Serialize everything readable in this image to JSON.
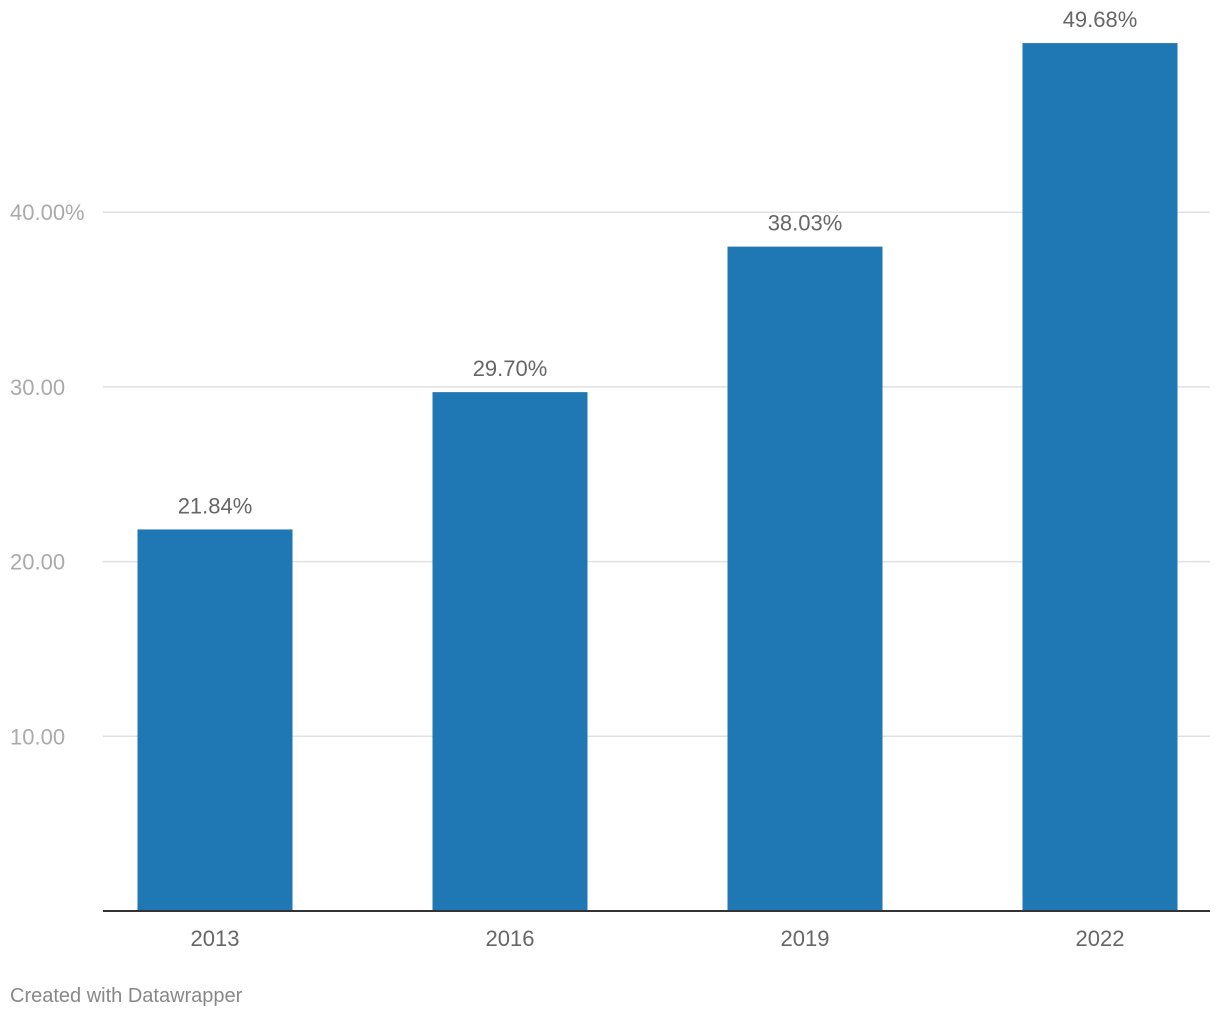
{
  "chart_data": {
    "type": "bar",
    "categories": [
      "2013",
      "2016",
      "2019",
      "2022"
    ],
    "values": [
      21.84,
      29.7,
      38.03,
      49.68
    ],
    "data_labels": [
      "21.84%",
      "29.70%",
      "38.03%",
      "49.68%"
    ],
    "y_ticks": [
      10,
      20,
      30,
      40
    ],
    "y_tick_labels": [
      "10.00",
      "20.00",
      "30.00",
      "40.00%"
    ],
    "ylim": [
      0,
      50
    ],
    "grid": true,
    "legend": "none",
    "bar_color": "#1f77b4"
  },
  "footer": {
    "credit": "Created with Datawrapper"
  }
}
